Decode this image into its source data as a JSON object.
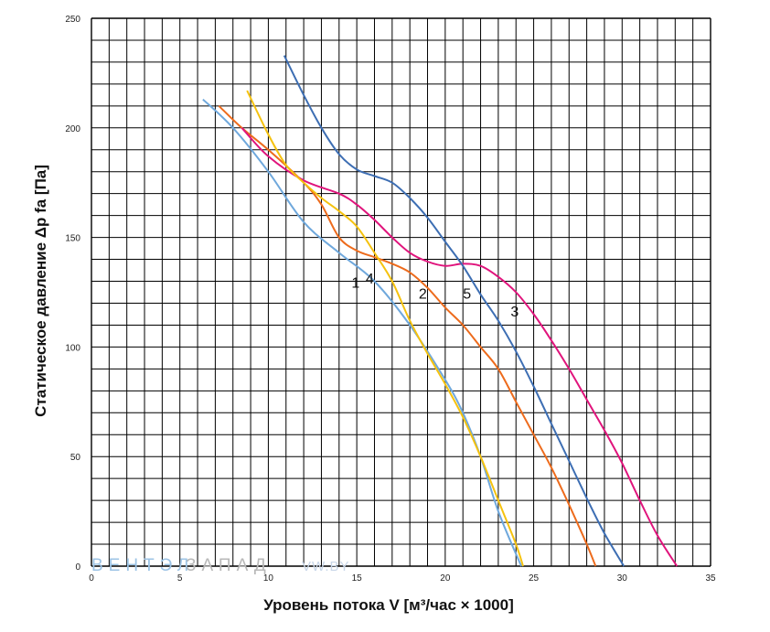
{
  "chart_data": {
    "type": "line",
    "xlabel": "Уровень потока V [м³/час × 1000]",
    "ylabel": "Статическое давление Δp fa [Па]",
    "xlim": [
      0,
      35
    ],
    "ylim": [
      0,
      250
    ],
    "x_ticks": [
      "0",
      "5",
      "10",
      "15",
      "20",
      "25",
      "30",
      "35"
    ],
    "y_ticks": [
      "0",
      "50",
      "100",
      "150",
      "200",
      "250"
    ],
    "grid": true,
    "series": [
      {
        "name": "1",
        "color": "#6fa8dc",
        "points": [
          [
            6.3,
            213
          ],
          [
            8,
            200
          ],
          [
            10,
            180
          ],
          [
            12,
            157
          ],
          [
            14,
            143
          ],
          [
            16,
            130
          ],
          [
            18,
            110
          ],
          [
            20,
            85
          ],
          [
            21,
            70
          ],
          [
            22,
            50
          ],
          [
            23,
            25
          ],
          [
            24.3,
            0
          ]
        ]
      },
      {
        "name": "2",
        "color": "#ed6b1c",
        "points": [
          [
            7.2,
            210
          ],
          [
            8.5,
            200
          ],
          [
            10,
            190
          ],
          [
            12,
            175
          ],
          [
            13,
            165
          ],
          [
            14,
            150
          ],
          [
            15,
            144
          ],
          [
            16,
            141
          ],
          [
            17,
            138
          ],
          [
            18,
            134
          ],
          [
            19,
            127
          ],
          [
            20,
            118
          ],
          [
            21,
            110
          ],
          [
            22,
            100
          ],
          [
            23,
            90
          ],
          [
            24,
            75
          ],
          [
            25,
            60
          ],
          [
            26,
            45
          ],
          [
            27,
            28
          ],
          [
            28,
            10
          ],
          [
            28.5,
            0
          ]
        ]
      },
      {
        "name": "3",
        "color": "#e0147c",
        "points": [
          [
            8.5,
            200
          ],
          [
            10,
            187
          ],
          [
            12,
            176
          ],
          [
            14,
            170
          ],
          [
            15,
            165
          ],
          [
            16,
            158
          ],
          [
            17,
            150
          ],
          [
            18,
            143
          ],
          [
            19,
            139
          ],
          [
            20,
            137
          ],
          [
            21,
            138
          ],
          [
            22,
            137
          ],
          [
            23,
            132
          ],
          [
            24,
            125
          ],
          [
            25,
            115
          ],
          [
            26,
            103
          ],
          [
            27,
            90
          ],
          [
            28,
            76
          ],
          [
            29,
            62
          ],
          [
            30,
            47
          ],
          [
            31,
            30
          ],
          [
            32,
            14
          ],
          [
            33.1,
            0
          ]
        ]
      },
      {
        "name": "4",
        "color": "#f5c20f",
        "points": [
          [
            8.8,
            217
          ],
          [
            10,
            197
          ],
          [
            11,
            183
          ],
          [
            12,
            175
          ],
          [
            13,
            168
          ],
          [
            14,
            162
          ],
          [
            15,
            155
          ],
          [
            16,
            143
          ],
          [
            17,
            130
          ],
          [
            18,
            112
          ],
          [
            19,
            97
          ],
          [
            20,
            83
          ],
          [
            21,
            68
          ],
          [
            22,
            50
          ],
          [
            23,
            30
          ],
          [
            24,
            10
          ],
          [
            24.4,
            0
          ]
        ]
      },
      {
        "name": "5",
        "color": "#3d6eb3",
        "points": [
          [
            10.9,
            233
          ],
          [
            12,
            215
          ],
          [
            13,
            200
          ],
          [
            14,
            188
          ],
          [
            15,
            181
          ],
          [
            16,
            178
          ],
          [
            17,
            175
          ],
          [
            18,
            168
          ],
          [
            19,
            159
          ],
          [
            20,
            148
          ],
          [
            21,
            137
          ],
          [
            22,
            124
          ],
          [
            23,
            112
          ],
          [
            24,
            98
          ],
          [
            25,
            82
          ],
          [
            26,
            65
          ],
          [
            27,
            48
          ],
          [
            28,
            31
          ],
          [
            29,
            15
          ],
          [
            30.1,
            0
          ]
        ]
      }
    ],
    "annotations": [
      "1",
      "4",
      "2",
      "5",
      "3"
    ]
  },
  "watermark": {
    "brand_part1": "ВЕНТЭЛ",
    "brand_part2": "ЗАПАД",
    "site": "VW.BY"
  }
}
